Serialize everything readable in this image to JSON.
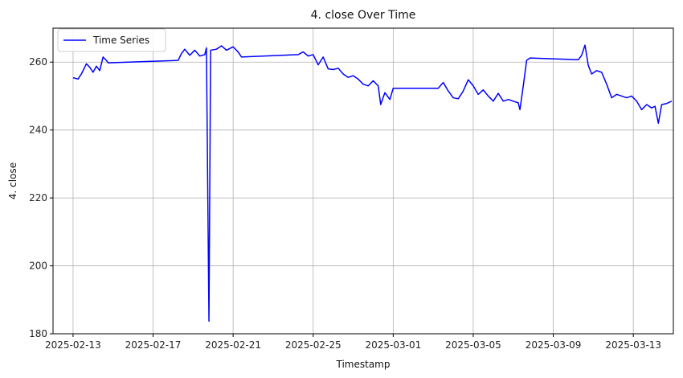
{
  "chart_data": {
    "type": "line",
    "title": "4. close Over Time",
    "xlabel": "Timestamp",
    "ylabel": "4. close",
    "x_type": "date",
    "xlim": [
      "2025-02-12",
      "2025-03-15"
    ],
    "ylim": [
      180,
      270
    ],
    "x_ticks": [
      "2025-02-13",
      "2025-02-17",
      "2025-02-21",
      "2025-02-25",
      "2025-03-01",
      "2025-03-05",
      "2025-03-09",
      "2025-03-13"
    ],
    "y_ticks": [
      180,
      200,
      220,
      240,
      260
    ],
    "grid": true,
    "legend": {
      "position": "top-left",
      "entries": [
        "Time Series"
      ]
    },
    "colors": {
      "series": "#0000ff",
      "grid": "#b0b0b0"
    },
    "series": [
      {
        "name": "Time Series",
        "points": [
          [
            "2025-02-13T00:00",
            255.4
          ],
          [
            "2025-02-13T06:00",
            255.0
          ],
          [
            "2025-02-13T10:00",
            256.5
          ],
          [
            "2025-02-13T16:00",
            259.5
          ],
          [
            "2025-02-13T20:00",
            258.5
          ],
          [
            "2025-02-14T00:00",
            257.0
          ],
          [
            "2025-02-14T04:00",
            258.8
          ],
          [
            "2025-02-14T08:00",
            257.5
          ],
          [
            "2025-02-14T12:00",
            261.5
          ],
          [
            "2025-02-14T16:00",
            260.5
          ],
          [
            "2025-02-14T18:00",
            259.8
          ],
          [
            "2025-02-18T06:00",
            260.5
          ],
          [
            "2025-02-18T10:00",
            262.5
          ],
          [
            "2025-02-18T14:00",
            263.8
          ],
          [
            "2025-02-18T20:00",
            262.0
          ],
          [
            "2025-02-19T02:00",
            263.5
          ],
          [
            "2025-02-19T08:00",
            261.8
          ],
          [
            "2025-02-19T14:00",
            262.2
          ],
          [
            "2025-02-19T16:00",
            264.2
          ],
          [
            "2025-02-19T19:00",
            183.7
          ],
          [
            "2025-02-19T21:00",
            263.5
          ],
          [
            "2025-02-20T04:00",
            263.8
          ],
          [
            "2025-02-20T10:00",
            264.8
          ],
          [
            "2025-02-20T16:00",
            263.5
          ],
          [
            "2025-02-21T00:00",
            264.5
          ],
          [
            "2025-02-21T06:00",
            263.0
          ],
          [
            "2025-02-21T10:00",
            261.5
          ],
          [
            "2025-02-24T06:00",
            262.2
          ],
          [
            "2025-02-24T12:00",
            263.0
          ],
          [
            "2025-02-24T18:00",
            261.8
          ],
          [
            "2025-02-25T00:00",
            262.2
          ],
          [
            "2025-02-25T06:00",
            259.2
          ],
          [
            "2025-02-25T12:00",
            261.5
          ],
          [
            "2025-02-25T18:00",
            258.0
          ],
          [
            "2025-02-26T00:00",
            257.8
          ],
          [
            "2025-02-26T06:00",
            258.2
          ],
          [
            "2025-02-26T12:00",
            256.5
          ],
          [
            "2025-02-26T18:00",
            255.5
          ],
          [
            "2025-02-27T00:00",
            256.0
          ],
          [
            "2025-02-27T06:00",
            255.0
          ],
          [
            "2025-02-27T12:00",
            253.5
          ],
          [
            "2025-02-27T18:00",
            253.0
          ],
          [
            "2025-02-28T00:00",
            254.5
          ],
          [
            "2025-02-28T06:00",
            253.0
          ],
          [
            "2025-02-28T09:00",
            247.5
          ],
          [
            "2025-02-28T14:00",
            251.0
          ],
          [
            "2025-02-28T20:00",
            249.0
          ],
          [
            "2025-03-01T00:00",
            252.3
          ],
          [
            "2025-03-03T06:00",
            252.3
          ],
          [
            "2025-03-03T12:00",
            254.0
          ],
          [
            "2025-03-03T18:00",
            251.5
          ],
          [
            "2025-03-04T00:00",
            249.5
          ],
          [
            "2025-03-04T06:00",
            249.2
          ],
          [
            "2025-03-04T12:00",
            251.5
          ],
          [
            "2025-03-04T18:00",
            254.8
          ],
          [
            "2025-03-05T00:00",
            253.0
          ],
          [
            "2025-03-05T06:00",
            250.5
          ],
          [
            "2025-03-05T12:00",
            251.8
          ],
          [
            "2025-03-05T18:00",
            250.0
          ],
          [
            "2025-03-06T00:00",
            248.5
          ],
          [
            "2025-03-06T06:00",
            250.8
          ],
          [
            "2025-03-06T12:00",
            248.5
          ],
          [
            "2025-03-06T18:00",
            249.0
          ],
          [
            "2025-03-07T00:00",
            248.5
          ],
          [
            "2025-03-07T06:00",
            248.0
          ],
          [
            "2025-03-07T08:00",
            246.0
          ],
          [
            "2025-03-07T12:00",
            253.0
          ],
          [
            "2025-03-07T16:00",
            260.5
          ],
          [
            "2025-03-07T20:00",
            261.2
          ],
          [
            "2025-03-10T06:00",
            260.7
          ],
          [
            "2025-03-10T10:00",
            262.0
          ],
          [
            "2025-03-10T14:00",
            265.0
          ],
          [
            "2025-03-10T18:00",
            259.0
          ],
          [
            "2025-03-10T22:00",
            256.5
          ],
          [
            "2025-03-11T04:00",
            257.5
          ],
          [
            "2025-03-11T10:00",
            257.0
          ],
          [
            "2025-03-11T16:00",
            253.5
          ],
          [
            "2025-03-11T22:00",
            249.5
          ],
          [
            "2025-03-12T04:00",
            250.5
          ],
          [
            "2025-03-12T10:00",
            250.0
          ],
          [
            "2025-03-12T16:00",
            249.5
          ],
          [
            "2025-03-12T22:00",
            250.0
          ],
          [
            "2025-03-13T04:00",
            248.5
          ],
          [
            "2025-03-13T10:00",
            246.0
          ],
          [
            "2025-03-13T16:00",
            247.5
          ],
          [
            "2025-03-13T22:00",
            246.5
          ],
          [
            "2025-03-14T02:00",
            247.0
          ],
          [
            "2025-03-14T06:00",
            242.0
          ],
          [
            "2025-03-14T10:00",
            247.5
          ],
          [
            "2025-03-14T16:00",
            247.8
          ],
          [
            "2025-03-14T22:00",
            248.5
          ]
        ]
      }
    ]
  }
}
